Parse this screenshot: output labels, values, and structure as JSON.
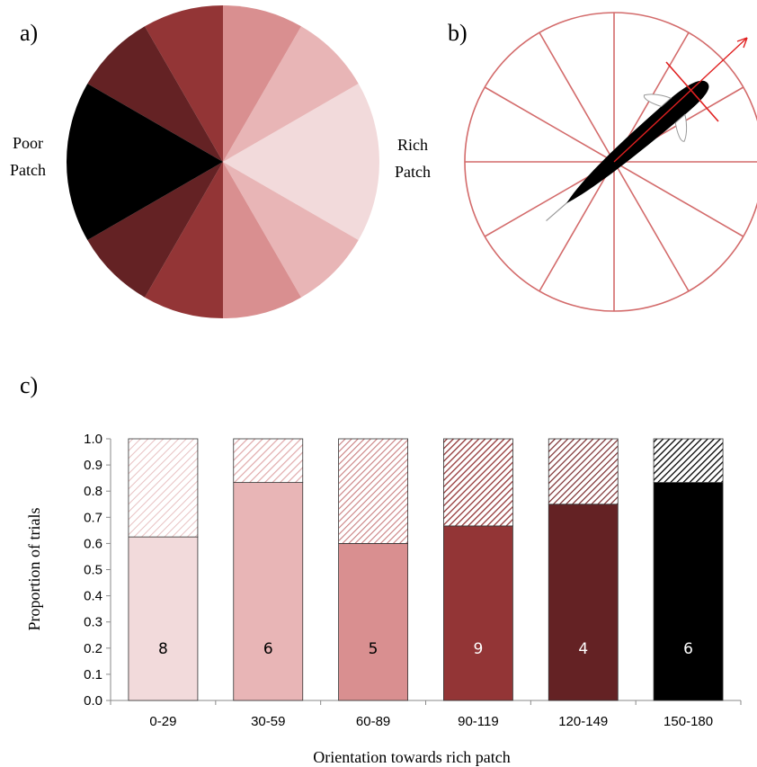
{
  "panels": {
    "a_label": "a)",
    "b_label": "b)",
    "c_label": "c)"
  },
  "pie": {
    "left_label_line1": "Poor",
    "left_label_line2": "Patch",
    "right_label_line1": "Rich",
    "right_label_line2": "Patch",
    "colors": {
      "rich": "#f2dadb",
      "c30": "#e8b5b6",
      "c60": "#d98f90",
      "c90": "#933536",
      "c120": "#642224",
      "c150": "#000000"
    }
  },
  "compass": {
    "line_color": "#d36b6b",
    "arrow_color": "#e02020"
  },
  "chart_data": {
    "type": "bar",
    "stacked": true,
    "categories": [
      "0-29",
      "30-59",
      "60-89",
      "90-119",
      "120-149",
      "150-180"
    ],
    "series": [
      {
        "values": [
          0.625,
          0.833,
          0.6,
          0.667,
          0.75,
          0.833
        ]
      },
      {
        "values": [
          0.375,
          0.167,
          0.4,
          0.333,
          0.25,
          0.167
        ]
      }
    ],
    "counts": [
      "8",
      "6",
      "5",
      "9",
      "4",
      "6"
    ],
    "colors": [
      "#f2dadb",
      "#e8b5b6",
      "#d98f90",
      "#933536",
      "#642224",
      "#000000"
    ],
    "xlabel": "Orientation towards rich patch",
    "ylabel": "Proportion of trials",
    "ylim": [
      0,
      1.0
    ],
    "yticks": [
      "0.0",
      "0.1",
      "0.2",
      "0.3",
      "0.4",
      "0.5",
      "0.6",
      "0.7",
      "0.8",
      "0.9",
      "1.0"
    ],
    "grid": false,
    "legend": "none"
  }
}
